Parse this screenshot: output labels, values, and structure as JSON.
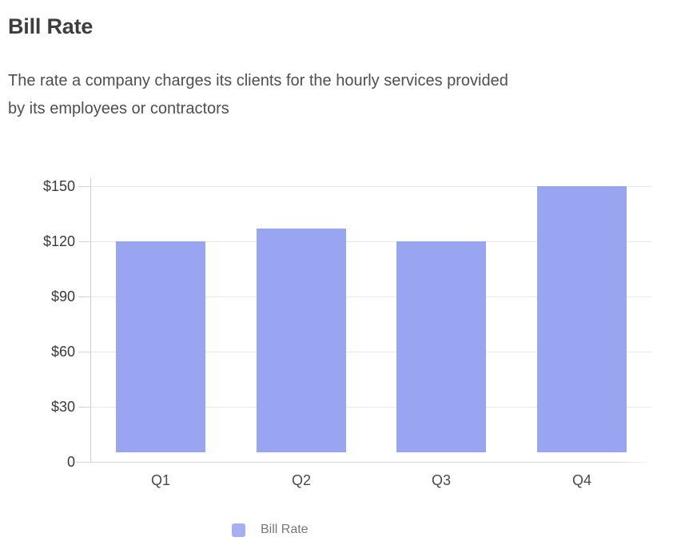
{
  "page": {
    "title": "Bill Rate",
    "description_lines": [
      "The rate a company charges its clients for the hourly services provided",
      "by its employees or contractors"
    ]
  },
  "chart_data": {
    "type": "bar",
    "title": "Bill Rate",
    "categories": [
      "Q1",
      "Q2",
      "Q3",
      "Q4"
    ],
    "series": [
      {
        "name": "Bill Rate",
        "values": [
          120,
          127,
          120,
          150
        ]
      }
    ],
    "xlabel": "",
    "ylabel": "",
    "ylim": [
      0,
      150
    ],
    "yticks": [
      0,
      30,
      60,
      90,
      120,
      150
    ],
    "ytick_labels": [
      "0",
      "$30",
      "$60",
      "$90",
      "$120",
      "$150"
    ],
    "grid": true,
    "legend_position": "bottom",
    "bar_color": "#99a5f1",
    "legend_swatch_color": "#a7aff3"
  }
}
